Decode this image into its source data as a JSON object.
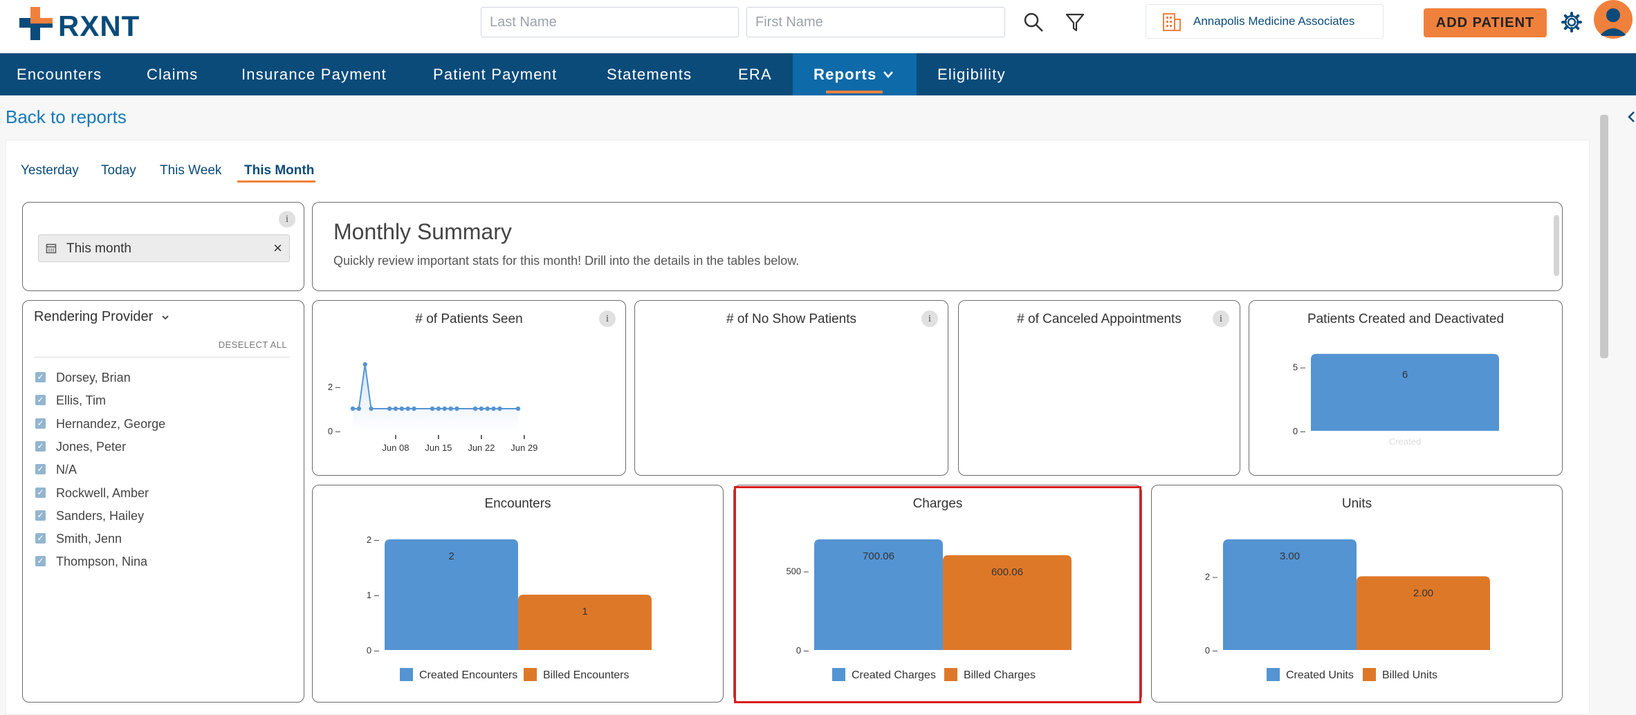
{
  "brand": {
    "name": "RXNT"
  },
  "header": {
    "last_name_placeholder": "Last Name",
    "first_name_placeholder": "First Name",
    "practice_name": "Annapolis Medicine Associates",
    "add_patient_label": "ADD PATIENT"
  },
  "nav": {
    "items": [
      {
        "label": "Encounters"
      },
      {
        "label": "Claims"
      },
      {
        "label": "Insurance Payment"
      },
      {
        "label": "Patient Payment"
      },
      {
        "label": "Statements"
      },
      {
        "label": "ERA"
      },
      {
        "label": "Reports"
      },
      {
        "label": "Eligibility"
      }
    ],
    "active": "Reports"
  },
  "back_link": "Back to reports",
  "tabs": {
    "items": [
      {
        "label": "Yesterday"
      },
      {
        "label": "Today"
      },
      {
        "label": "This Week"
      },
      {
        "label": "This Month"
      }
    ],
    "active": "This Month"
  },
  "date_filter": {
    "value": "This month",
    "clear_label": "×"
  },
  "provider_filter": {
    "title": "Rendering Provider",
    "deselect_all": "DESELECT ALL",
    "providers": [
      {
        "name": "Dorsey, Brian",
        "checked": true
      },
      {
        "name": "Ellis, Tim",
        "checked": true
      },
      {
        "name": "Hernandez, George",
        "checked": true
      },
      {
        "name": "Jones, Peter",
        "checked": true
      },
      {
        "name": "N/A",
        "checked": true
      },
      {
        "name": "Rockwell, Amber",
        "checked": true
      },
      {
        "name": "Sanders, Hailey",
        "checked": true
      },
      {
        "name": "Smith, Jenn",
        "checked": true
      },
      {
        "name": "Thompson, Nina",
        "checked": true
      }
    ]
  },
  "summary": {
    "title": "Monthly Summary",
    "subtitle": "Quickly review important stats for this month! Drill into the details in the tables below."
  },
  "cards": {
    "patients_seen": "# of Patients Seen",
    "no_show": "# of No Show Patients",
    "canceled": "# of Canceled Appointments",
    "created_deactivated": "Patients Created and Deactivated",
    "encounters": "Encounters",
    "charges": "Charges",
    "units": "Units"
  },
  "colors": {
    "blue": "#5494d3",
    "orange": "#de7829",
    "nav": "#0a4b7a",
    "accent": "#f0813d"
  },
  "chart_data": [
    {
      "id": "patients_seen",
      "type": "line",
      "title": "# of Patients Seen",
      "x_ticks": [
        "Jun 08",
        "Jun 15",
        "Jun 22",
        "Jun 29"
      ],
      "y_ticks": [
        0,
        2
      ],
      "ylim": [
        0,
        4
      ],
      "x": [
        1,
        2,
        3,
        4,
        5,
        6,
        7,
        8,
        9,
        10,
        11,
        12,
        13,
        14,
        15,
        16,
        17,
        18,
        19,
        20,
        21,
        22,
        23,
        24,
        25,
        26,
        27,
        28,
        29,
        30
      ],
      "values": [
        1,
        1,
        3,
        1,
        null,
        null,
        1,
        1,
        1,
        1,
        1,
        null,
        null,
        1,
        1,
        1,
        1,
        1,
        null,
        null,
        1,
        1,
        1,
        1,
        1,
        null,
        null,
        1,
        null,
        null
      ]
    },
    {
      "id": "created_deactivated",
      "type": "bar",
      "title": "Patients Created and Deactivated",
      "categories": [
        "Created"
      ],
      "values": [
        6
      ],
      "labels": [
        "6"
      ],
      "y_ticks": [
        0,
        5
      ],
      "ylim": [
        0,
        6.2
      ]
    },
    {
      "id": "encounters",
      "type": "bar",
      "title": "Encounters",
      "series": [
        {
          "name": "Created Encounters",
          "values": [
            2
          ],
          "labels": [
            "2"
          ]
        },
        {
          "name": "Billed Encounters",
          "values": [
            1
          ],
          "labels": [
            "1"
          ]
        }
      ],
      "y_ticks": [
        0,
        1,
        2
      ],
      "ylim": [
        0,
        2
      ]
    },
    {
      "id": "charges",
      "type": "bar",
      "title": "Charges",
      "series": [
        {
          "name": "Created Charges",
          "values": [
            700.06
          ],
          "labels": [
            "700.06"
          ]
        },
        {
          "name": "Billed Charges",
          "values": [
            600.06
          ],
          "labels": [
            "600.06"
          ]
        }
      ],
      "y_ticks": [
        0,
        500
      ],
      "ylim": [
        0,
        700.06
      ]
    },
    {
      "id": "units",
      "type": "bar",
      "title": "Units",
      "series": [
        {
          "name": "Created Units",
          "values": [
            3.0
          ],
          "labels": [
            "3.00"
          ]
        },
        {
          "name": "Billed Units",
          "values": [
            2.0
          ],
          "labels": [
            "2.00"
          ]
        }
      ],
      "y_ticks": [
        0,
        2
      ],
      "ylim": [
        0,
        3
      ]
    }
  ]
}
